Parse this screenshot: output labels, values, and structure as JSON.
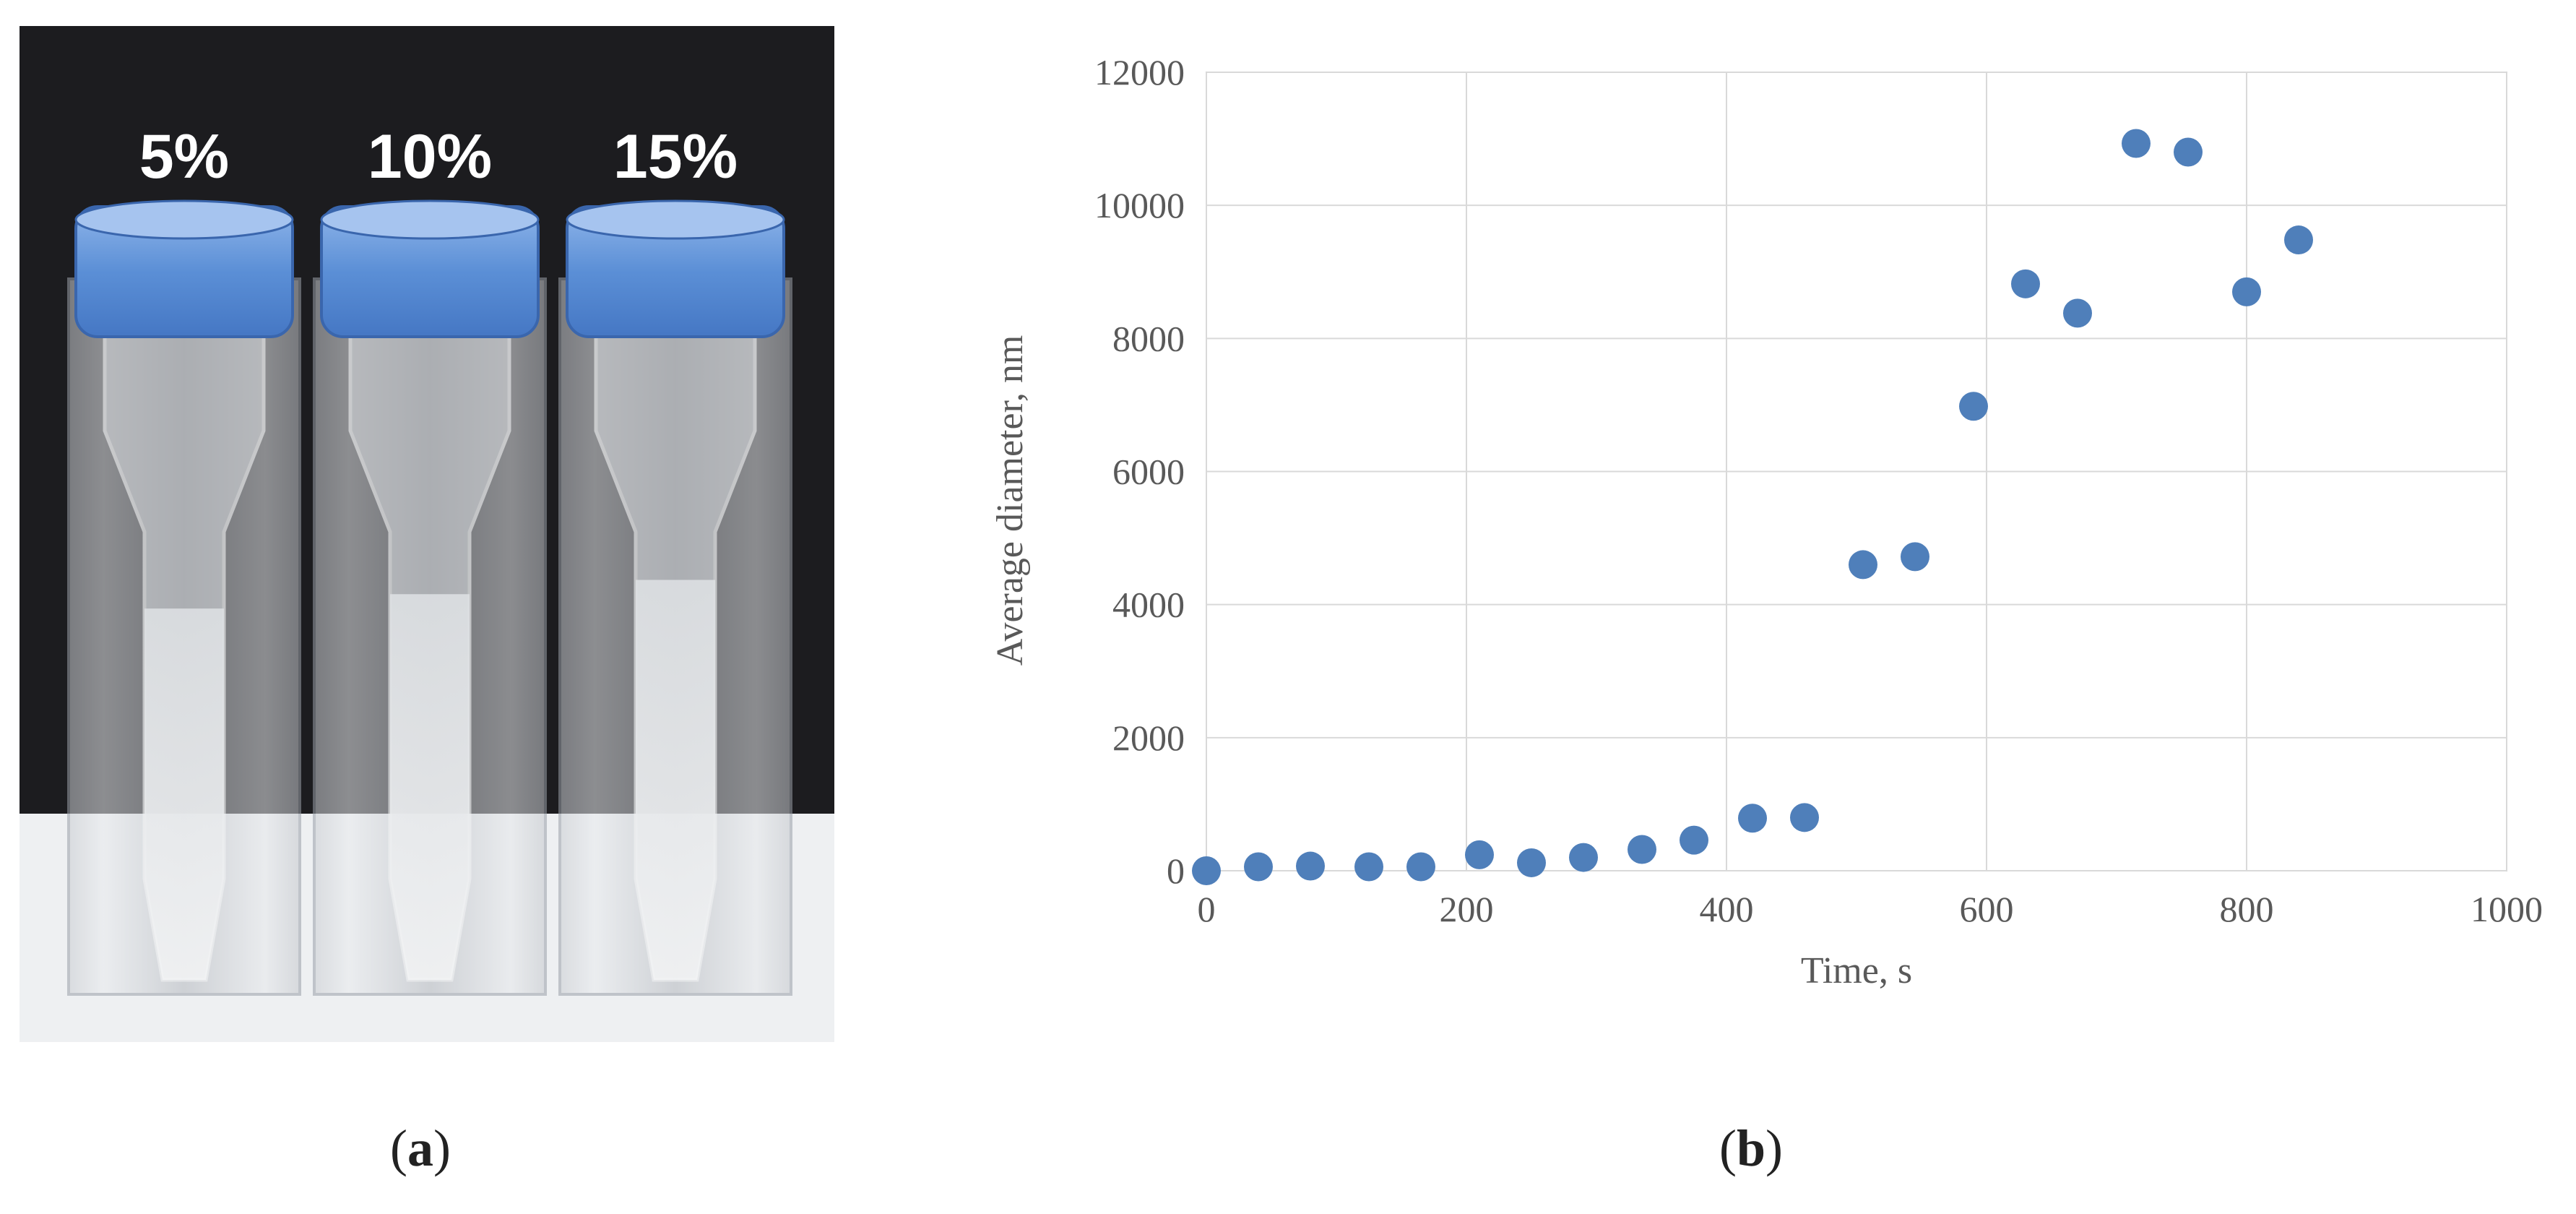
{
  "figure": {
    "panel_a": {
      "labels": [
        "5%",
        "10%",
        "15%"
      ],
      "caption_letter": "a",
      "colors": {
        "background": "#1c1c1f",
        "cap": "#5b8fd6",
        "base": "#eef0f2"
      }
    },
    "panel_b": {
      "caption_letter": "b"
    }
  },
  "chart_data": {
    "type": "scatter",
    "xlabel": "Time,  s",
    "ylabel": "Average diameter,  nm",
    "xlim": [
      0,
      1000
    ],
    "ylim": [
      0,
      12000
    ],
    "xticks": [
      0,
      200,
      400,
      600,
      800,
      1000
    ],
    "yticks": [
      0,
      2000,
      4000,
      6000,
      8000,
      10000,
      12000
    ],
    "grid": true,
    "marker_color": "#4f7fba",
    "series": [
      {
        "x": [
          0,
          40,
          80,
          125,
          165,
          210,
          250,
          290,
          335,
          375,
          420,
          460,
          505,
          545,
          590,
          630,
          670,
          715,
          755,
          800,
          840
        ],
        "y": [
          0,
          60,
          70,
          60,
          60,
          240,
          120,
          200,
          320,
          460,
          790,
          800,
          4600,
          4720,
          6980,
          8820,
          8380,
          10930,
          10800,
          8700,
          9480
        ]
      }
    ]
  }
}
